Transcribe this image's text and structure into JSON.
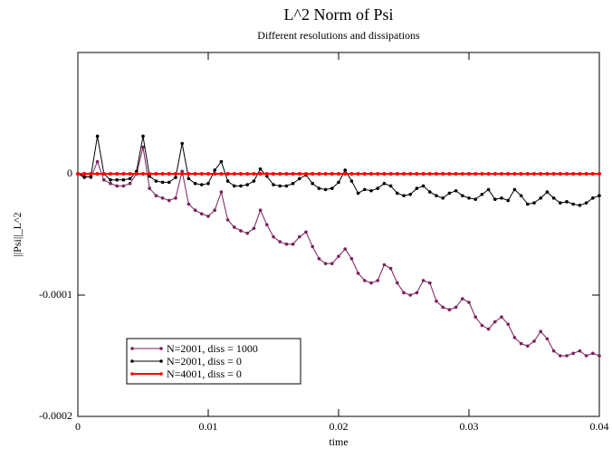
{
  "chart_data": {
    "type": "line",
    "title": "L^2 Norm of Psi",
    "subtitle": "Different resolutions and dissipations",
    "x_label": "time",
    "y_label": "||Psi||_L^2",
    "x": [
      0,
      0.0005,
      0.001,
      0.0015,
      0.002,
      0.0025,
      0.003,
      0.0035,
      0.004,
      0.0045,
      0.005,
      0.0055,
      0.006,
      0.0065,
      0.007,
      0.0075,
      0.008,
      0.0085,
      0.009,
      0.0095,
      0.01,
      0.0105,
      0.011,
      0.0115,
      0.012,
      0.0125,
      0.013,
      0.0135,
      0.014,
      0.0145,
      0.015,
      0.0155,
      0.016,
      0.0165,
      0.017,
      0.0175,
      0.018,
      0.0185,
      0.019,
      0.0195,
      0.02,
      0.0205,
      0.021,
      0.0215,
      0.022,
      0.0225,
      0.023,
      0.0235,
      0.024,
      0.0245,
      0.025,
      0.0255,
      0.026,
      0.0265,
      0.027,
      0.0275,
      0.028,
      0.0285,
      0.029,
      0.0295,
      0.03,
      0.0305,
      0.031,
      0.0315,
      0.032,
      0.0325,
      0.033,
      0.0335,
      0.034,
      0.0345,
      0.035,
      0.0355,
      0.036,
      0.0365,
      0.037,
      0.0375,
      0.038,
      0.0385,
      0.039,
      0.0395,
      0.04
    ],
    "series": [
      {
        "name": "N=2001, diss = 1000",
        "color": "#7a1f5c",
        "values": [
          0,
          -2e-06,
          -3e-06,
          1e-05,
          -5e-06,
          -8e-06,
          -1e-05,
          -1e-05,
          -8e-06,
          0,
          2.2e-05,
          -1.2e-05,
          -1.8e-05,
          -2e-05,
          -2.2e-05,
          -2e-05,
          2e-06,
          -2.5e-05,
          -3e-05,
          -3.3e-05,
          -3.5e-05,
          -3e-05,
          -1.5e-05,
          -3.8e-05,
          -4.4e-05,
          -4.7e-05,
          -4.9e-05,
          -4.5e-05,
          -3e-05,
          -4.2e-05,
          -5.2e-05,
          -5.6e-05,
          -5.8e-05,
          -5.8e-05,
          -5.2e-05,
          -4.8e-05,
          -6e-05,
          -7e-05,
          -7.4e-05,
          -7.4e-05,
          -6.8e-05,
          -6.2e-05,
          -7e-05,
          -8.2e-05,
          -8.8e-05,
          -9e-05,
          -8.8e-05,
          -7.5e-05,
          -7.8e-05,
          -9e-05,
          -9.8e-05,
          -0.0001,
          -9.8e-05,
          -8.8e-05,
          -9e-05,
          -0.000105,
          -0.00011,
          -0.000112,
          -0.00011,
          -0.000103,
          -0.000106,
          -0.000118,
          -0.000125,
          -0.000128,
          -0.000122,
          -0.000118,
          -0.000124,
          -0.000135,
          -0.00014,
          -0.000142,
          -0.000138,
          -0.00013,
          -0.000136,
          -0.000146,
          -0.00015,
          -0.00015,
          -0.000148,
          -0.000146,
          -0.00015,
          -0.000148,
          -0.00015
        ]
      },
      {
        "name": "N=2001, diss = 0",
        "color": "#000000",
        "values": [
          0,
          -3e-06,
          -2e-06,
          3.1e-05,
          0,
          -5e-06,
          -5e-06,
          -5e-06,
          -4e-06,
          2e-06,
          3.1e-05,
          -2e-06,
          -6e-06,
          -7e-06,
          -7e-06,
          -3e-06,
          2.5e-05,
          -4e-06,
          -8e-06,
          -9e-06,
          -8e-06,
          3e-06,
          1e-05,
          -6e-06,
          -1e-05,
          -1e-05,
          -9e-06,
          -6e-06,
          4e-06,
          -2e-06,
          -9e-06,
          -1e-05,
          -1e-05,
          -8e-06,
          -4e-06,
          -1e-06,
          -8e-06,
          -1.2e-05,
          -1.3e-05,
          -1.2e-05,
          -7e-06,
          3e-06,
          -6e-06,
          -1.6e-05,
          -1.3e-05,
          -1.4e-05,
          -1.2e-05,
          -8e-06,
          -1e-05,
          -1.6e-05,
          -1.8e-05,
          -1.7e-05,
          -1.2e-05,
          -1e-05,
          -1.5e-05,
          -1.8e-05,
          -2e-05,
          -1.6e-05,
          -1.4e-05,
          -1.8e-05,
          -2e-05,
          -2.1e-05,
          -1.7e-05,
          -1.3e-05,
          -2.1e-05,
          -2e-05,
          -2.2e-05,
          -1.3e-05,
          -1.8e-05,
          -2.5e-05,
          -2.4e-05,
          -2e-05,
          -1.5e-05,
          -2e-05,
          -2.4e-05,
          -2.3e-05,
          -2.5e-05,
          -2.6e-05,
          -2.4e-05,
          -2e-05,
          -1.8e-05
        ]
      },
      {
        "name": "N=4001, diss = 0",
        "color": "#ff0000",
        "values": [
          0,
          0,
          0,
          0,
          0,
          0,
          0,
          0,
          0,
          0,
          0,
          0,
          0,
          0,
          0,
          0,
          0,
          0,
          0,
          0,
          0,
          0,
          0,
          0,
          0,
          0,
          0,
          0,
          0,
          0,
          0,
          0,
          0,
          0,
          0,
          0,
          0,
          0,
          0,
          0,
          0,
          0,
          0,
          0,
          0,
          0,
          0,
          0,
          0,
          0,
          0,
          0,
          0,
          0,
          0,
          0,
          0,
          0,
          0,
          0,
          0,
          0,
          0,
          0,
          0,
          0,
          0,
          0,
          0,
          0,
          0,
          0,
          0,
          0,
          0,
          0,
          0,
          0,
          0,
          0,
          0
        ]
      }
    ],
    "xlim": [
      0,
      0.04
    ],
    "xticks": [
      0,
      0.01,
      0.02,
      0.03,
      0.04
    ],
    "ylim": [
      -0.0002,
      0.0001
    ],
    "yticks": [
      -0.0002,
      -0.0001,
      0
    ],
    "legend": "lower-left",
    "grid": false
  }
}
